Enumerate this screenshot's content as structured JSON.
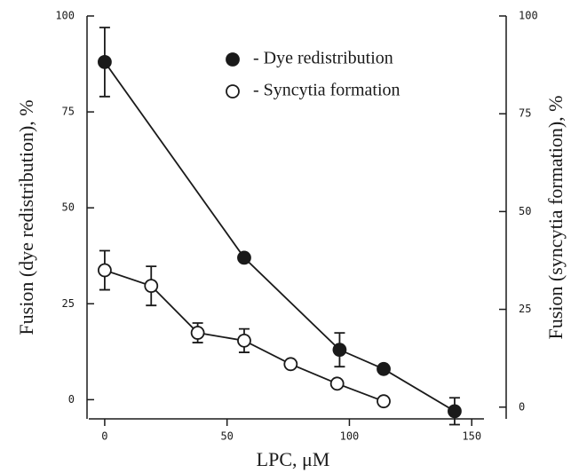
{
  "chart_data": {
    "type": "line",
    "x_label": "LPC, μM",
    "y_label": "Fusion (dye redistribution), %",
    "y2_label": "Fusion (syncytia formation), %",
    "xlim": [
      -6.5,
      155
    ],
    "xticks": [
      0,
      50,
      100,
      150
    ],
    "ylim": [
      -5,
      100
    ],
    "yticks": [
      0,
      25,
      50,
      75,
      100
    ],
    "y2lim": [
      -3,
      100
    ],
    "y2ticks": [
      0,
      25,
      50,
      75,
      100
    ],
    "series": [
      {
        "name": "- Dye redistribution",
        "color": "#1a1a1a",
        "filled": true,
        "axis": "y",
        "x": [
          0,
          57,
          96,
          114,
          143
        ],
        "values": [
          88,
          37,
          13,
          8,
          -3
        ],
        "errors": [
          9,
          null,
          4.4,
          null,
          3.5
        ]
      },
      {
        "name": "- Syncytia formation",
        "color": "#1a1a1a",
        "filled": false,
        "axis": "y2",
        "x": [
          0,
          19,
          38,
          57,
          76,
          95,
          114
        ],
        "values": [
          35,
          31,
          19,
          17,
          11,
          6,
          1.5
        ],
        "errors": [
          5,
          5,
          2.5,
          3,
          null,
          null,
          null
        ]
      }
    ]
  }
}
